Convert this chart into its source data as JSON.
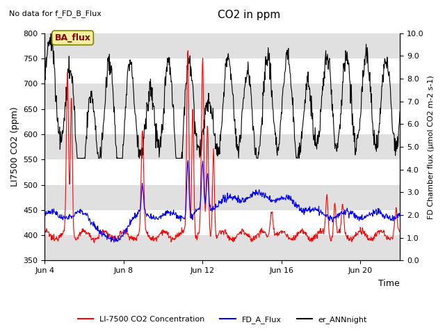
{
  "title": "CO2 in ppm",
  "top_left_note": "No data for f_FD_B_Flux",
  "ba_flux_label": "BA_flux",
  "ylabel_left": "LI7500 CO2 (ppm)",
  "ylabel_right": "FD Chamber flux (μmol CO2 m-2 s-1)",
  "xlabel": "Time",
  "ylim_left": [
    350,
    800
  ],
  "ylim_right": [
    0.0,
    10.0
  ],
  "yticks_left": [
    350,
    400,
    450,
    500,
    550,
    600,
    650,
    700,
    750,
    800
  ],
  "yticks_right": [
    0.0,
    1.0,
    2.0,
    3.0,
    4.0,
    5.0,
    6.0,
    7.0,
    8.0,
    9.0,
    10.0
  ],
  "xtick_labels": [
    "Jun 4",
    "Jun 8",
    "Jun 12",
    "Jun 16",
    "Jun 20"
  ],
  "xtick_positions": [
    0,
    4,
    8,
    12,
    16
  ],
  "legend_labels": [
    "LI-7500 CO2 Concentration",
    "FD_A_Flux",
    "er_ANNnight"
  ],
  "band_color": "#e0e0e0",
  "figsize": [
    6.4,
    4.8
  ],
  "dpi": 100
}
